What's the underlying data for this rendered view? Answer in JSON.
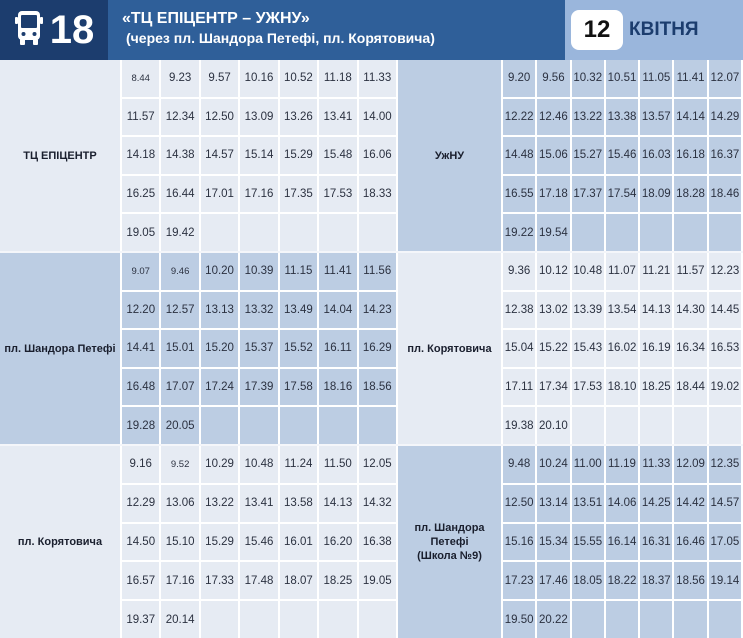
{
  "header": {
    "route_number": "18",
    "route_icon": "bus-icon",
    "title": "«ТЦ ЕПІЦЕНТР – УЖНУ»",
    "subtitle": "(через пл. Шандора Петефі, пл. Корятовича)",
    "date_day": "12",
    "date_month": "КВІТНЯ"
  },
  "colors": {
    "route_block": "#1c3d6e",
    "title_block": "#2f5f99",
    "date_block": "#9ab6dc",
    "cell_light": "#e6ebf3",
    "cell_dark": "#bccde3"
  },
  "sections": [
    {
      "left": {
        "stop": "ТЦ ЕПІЦЕНТР",
        "shade": "light",
        "times": [
          [
            "8.44",
            "9.23",
            "9.57",
            "10.16",
            "10.52",
            "11.18",
            "11.33"
          ],
          [
            "11.57",
            "12.34",
            "12.50",
            "13.09",
            "13.26",
            "13.41",
            "14.00"
          ],
          [
            "14.18",
            "14.38",
            "14.57",
            "15.14",
            "15.29",
            "15.48",
            "16.06"
          ],
          [
            "16.25",
            "16.44",
            "17.01",
            "17.16",
            "17.35",
            "17.53",
            "18.33"
          ],
          [
            "19.05",
            "19.42",
            "",
            "",
            "",
            "",
            ""
          ]
        ]
      },
      "right": {
        "stop": "УжНУ",
        "shade": "dark",
        "times": [
          [
            "9.20",
            "9.56",
            "10.32",
            "10.51",
            "11.05",
            "11.41",
            "12.07"
          ],
          [
            "12.22",
            "12.46",
            "13.22",
            "13.38",
            "13.57",
            "14.14",
            "14.29"
          ],
          [
            "14.48",
            "15.06",
            "15.27",
            "15.46",
            "16.03",
            "16.18",
            "16.37"
          ],
          [
            "16.55",
            "17.18",
            "17.37",
            "17.54",
            "18.09",
            "18.28",
            "18.46"
          ],
          [
            "19.22",
            "19.54",
            "",
            "",
            "",
            "",
            ""
          ]
        ]
      }
    },
    {
      "left": {
        "stop": "пл. Шандора Петефі",
        "shade": "dark",
        "times": [
          [
            "9.07",
            "9.46",
            "10.20",
            "10.39",
            "11.15",
            "11.41",
            "11.56"
          ],
          [
            "12.20",
            "12.57",
            "13.13",
            "13.32",
            "13.49",
            "14.04",
            "14.23"
          ],
          [
            "14.41",
            "15.01",
            "15.20",
            "15.37",
            "15.52",
            "16.11",
            "16.29"
          ],
          [
            "16.48",
            "17.07",
            "17.24",
            "17.39",
            "17.58",
            "18.16",
            "18.56"
          ],
          [
            "19.28",
            "20.05",
            "",
            "",
            "",
            "",
            ""
          ]
        ]
      },
      "right": {
        "stop": "пл. Корятовича",
        "shade": "light",
        "times": [
          [
            "9.36",
            "10.12",
            "10.48",
            "11.07",
            "11.21",
            "11.57",
            "12.23"
          ],
          [
            "12.38",
            "13.02",
            "13.39",
            "13.54",
            "14.13",
            "14.30",
            "14.45"
          ],
          [
            "15.04",
            "15.22",
            "15.43",
            "16.02",
            "16.19",
            "16.34",
            "16.53"
          ],
          [
            "17.11",
            "17.34",
            "17.53",
            "18.10",
            "18.25",
            "18.44",
            "19.02"
          ],
          [
            "19.38",
            "20.10",
            "",
            "",
            "",
            "",
            ""
          ]
        ]
      }
    },
    {
      "left": {
        "stop": "пл. Корятовича",
        "shade": "light",
        "times": [
          [
            "9.16",
            "9.52",
            "10.29",
            "10.48",
            "11.24",
            "11.50",
            "12.05"
          ],
          [
            "12.29",
            "13.06",
            "13.22",
            "13.41",
            "13.58",
            "14.13",
            "14.32"
          ],
          [
            "14.50",
            "15.10",
            "15.29",
            "15.46",
            "16.01",
            "16.20",
            "16.38"
          ],
          [
            "16.57",
            "17.16",
            "17.33",
            "17.48",
            "18.07",
            "18.25",
            "19.05"
          ],
          [
            "19.37",
            "20.14",
            "",
            "",
            "",
            "",
            ""
          ]
        ]
      },
      "right": {
        "stop": "пл. Шандора Петефі (Школа №9)",
        "stop_lines": [
          "пл. Шандора",
          "Петефі",
          "(Школа №9)"
        ],
        "shade": "dark",
        "times": [
          [
            "9.48",
            "10.24",
            "11.00",
            "11.19",
            "11.33",
            "12.09",
            "12.35"
          ],
          [
            "12.50",
            "13.14",
            "13.51",
            "14.06",
            "14.25",
            "14.42",
            "14.57"
          ],
          [
            "15.16",
            "15.34",
            "15.55",
            "16.14",
            "16.31",
            "16.46",
            "17.05"
          ],
          [
            "17.23",
            "17.46",
            "18.05",
            "18.22",
            "18.37",
            "18.56",
            "19.14"
          ],
          [
            "19.50",
            "20.22",
            "",
            "",
            "",
            "",
            ""
          ]
        ]
      }
    }
  ]
}
